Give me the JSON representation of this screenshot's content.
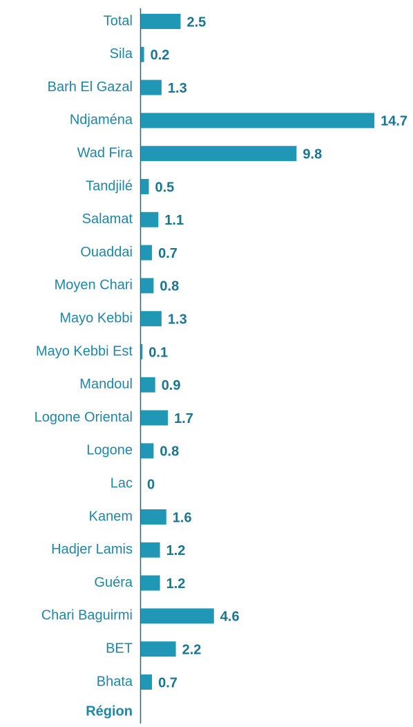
{
  "chart_data": {
    "type": "barh",
    "y_axis_label": "Région",
    "categories": [
      "Total",
      "Sila",
      "Barh El Gazal",
      "Ndjaména",
      "Wad Fira",
      "Tandjilé",
      "Salamat",
      "Ouaddai",
      "Moyen Chari",
      "Mayo Kebbi",
      "Mayo Kebbi Est",
      "Mandoul",
      "Logone Oriental",
      "Logone",
      "Lac",
      "Kanem",
      "Hadjer Lamis",
      "Guéra",
      "Chari Baguirmi",
      "BET",
      "Bhata"
    ],
    "values": [
      2.5,
      0.2,
      1.3,
      14.7,
      9.8,
      0.5,
      1.1,
      0.7,
      0.8,
      1.3,
      0.1,
      0.9,
      1.7,
      0.8,
      0,
      1.6,
      1.2,
      1.2,
      4.6,
      2.2,
      0.7
    ],
    "color": "#1f97b5",
    "xlim": [
      0,
      15
    ]
  }
}
